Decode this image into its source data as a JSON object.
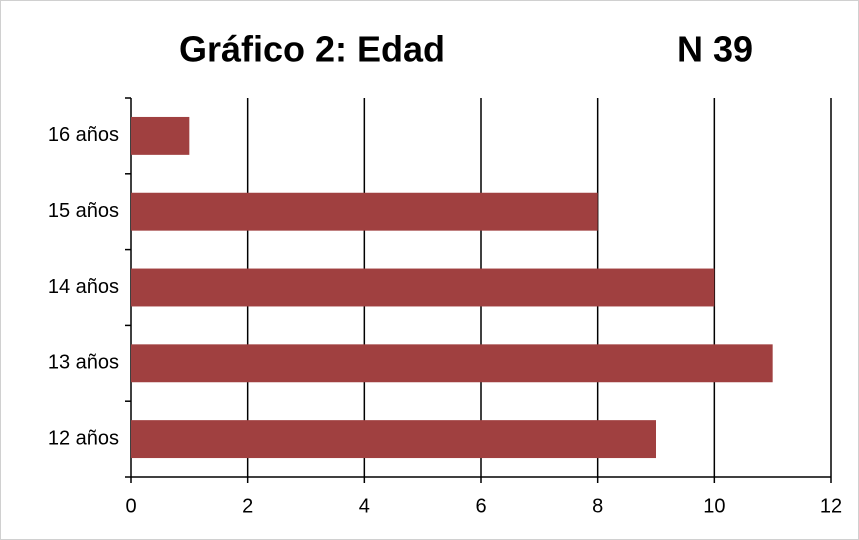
{
  "chart_data": {
    "type": "hbar",
    "title": "Gráfico 2: Edad",
    "subtitle": "N 39",
    "categories": [
      "12 años",
      "13 años",
      "14 años",
      "15 años",
      "16 años"
    ],
    "values": [
      9,
      11,
      10,
      8,
      1
    ],
    "color": "#a04040",
    "xlim": [
      0,
      12
    ],
    "xticks": [
      0,
      2,
      4,
      6,
      8,
      10,
      12
    ],
    "grid": true
  }
}
